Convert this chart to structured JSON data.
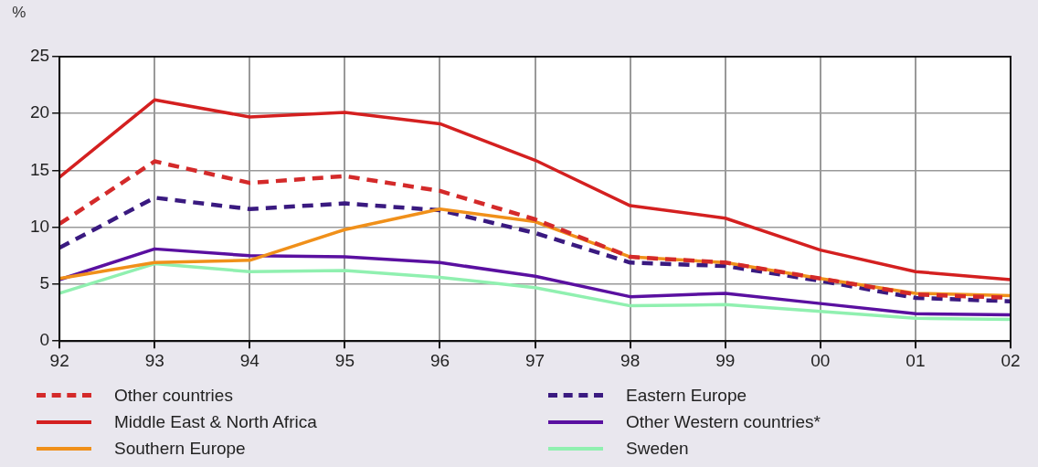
{
  "chart_data": {
    "type": "line",
    "ylabel": "%",
    "categories": [
      "92",
      "93",
      "94",
      "95",
      "96",
      "97",
      "98",
      "99",
      "00",
      "01",
      "02"
    ],
    "ylim": [
      0,
      25
    ],
    "yticks": [
      0,
      5,
      10,
      15,
      20,
      25
    ],
    "grid": true,
    "legend": "bottom",
    "marker": "none",
    "series": [
      {
        "name": "Other countries",
        "color": "#d42a2a",
        "line_style": "dashed",
        "values": [
          10.3,
          15.8,
          13.9,
          14.5,
          13.2,
          10.7,
          7.4,
          6.9,
          5.5,
          4.1,
          3.8
        ]
      },
      {
        "name": "Middle East & North Africa",
        "color": "#d42020",
        "line_style": "solid",
        "values": [
          14.4,
          21.2,
          19.7,
          20.1,
          19.1,
          15.9,
          11.9,
          10.8,
          8.0,
          6.1,
          5.4
        ]
      },
      {
        "name": "Southern Europe",
        "color": "#f0901a",
        "line_style": "solid",
        "values": [
          5.5,
          6.9,
          7.1,
          9.8,
          11.6,
          10.5,
          7.4,
          6.9,
          5.5,
          4.2,
          4.0
        ]
      },
      {
        "name": "Eastern Europe",
        "color": "#3a1a80",
        "line_style": "dashed",
        "values": [
          8.2,
          12.6,
          11.6,
          12.1,
          11.5,
          9.5,
          6.9,
          6.6,
          5.3,
          3.8,
          3.5
        ]
      },
      {
        "name": "Other Western countries*",
        "color": "#5a10a0",
        "line_style": "solid",
        "values": [
          5.4,
          8.1,
          7.5,
          7.4,
          6.9,
          5.7,
          3.9,
          4.2,
          3.3,
          2.4,
          2.3
        ]
      },
      {
        "name": "Sweden",
        "color": "#90f0b0",
        "line_style": "solid",
        "values": [
          4.2,
          6.8,
          6.1,
          6.2,
          5.6,
          4.7,
          3.1,
          3.2,
          2.6,
          2.0,
          1.9
        ]
      }
    ]
  }
}
